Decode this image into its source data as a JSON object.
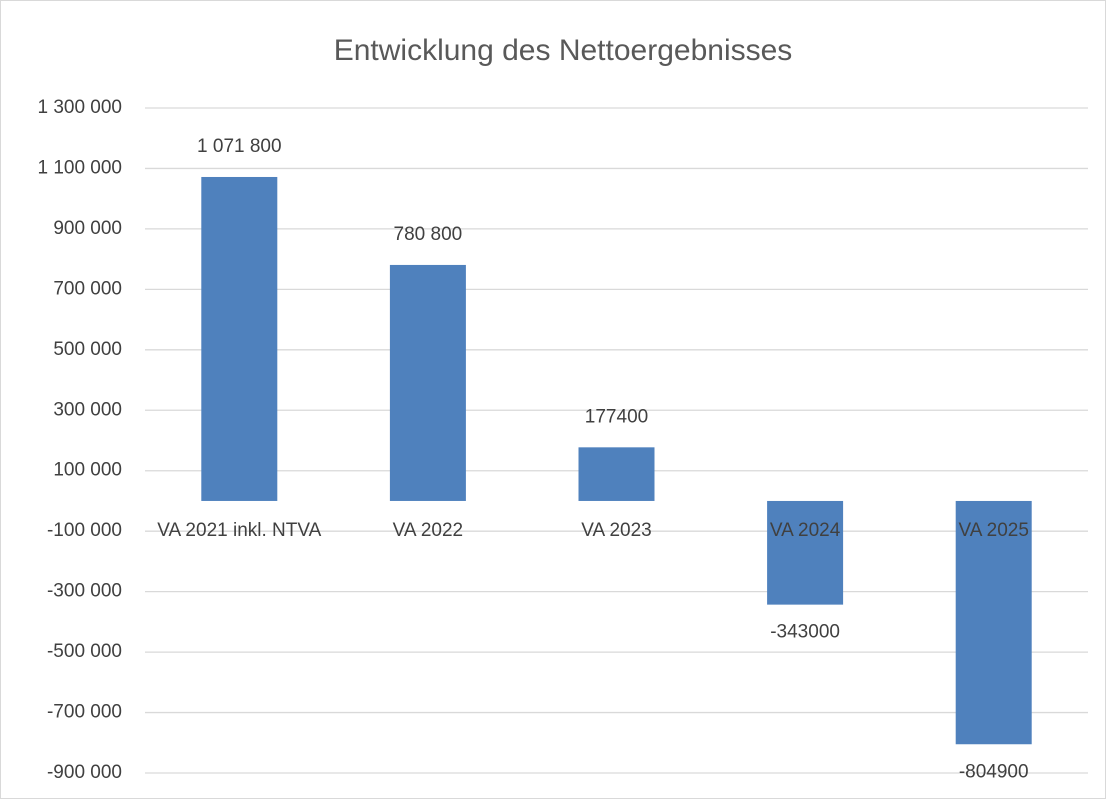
{
  "chart_data": {
    "type": "bar",
    "title": "Entwicklung des Nettoergebnisses",
    "categories": [
      "VA 2021 inkl. NTVA",
      "VA 2022",
      "VA 2023",
      "VA 2024",
      "VA 2025"
    ],
    "values": [
      1071800,
      780800,
      177400,
      -343000,
      -804900
    ],
    "value_labels": [
      "1 071 800",
      "780 800",
      "177400",
      "-343000",
      "-804900"
    ],
    "color": "#4f81bd",
    "ylim": [
      -900000,
      1300000
    ],
    "yticks": [
      {
        "value": -900000,
        "label": "-900 000"
      },
      {
        "value": -700000,
        "label": "-700 000"
      },
      {
        "value": -500000,
        "label": "-500 000"
      },
      {
        "value": -300000,
        "label": "-300 000"
      },
      {
        "value": -100000,
        "label": "-100 000"
      },
      {
        "value": 100000,
        "label": "100 000"
      },
      {
        "value": 300000,
        "label": "300 000"
      },
      {
        "value": 500000,
        "label": "500 000"
      },
      {
        "value": 700000,
        "label": "700 000"
      },
      {
        "value": 900000,
        "label": "900 000"
      },
      {
        "value": 1100000,
        "label": "1 100 000"
      },
      {
        "value": 1300000,
        "label": "1 300 000"
      }
    ],
    "grid": true
  }
}
